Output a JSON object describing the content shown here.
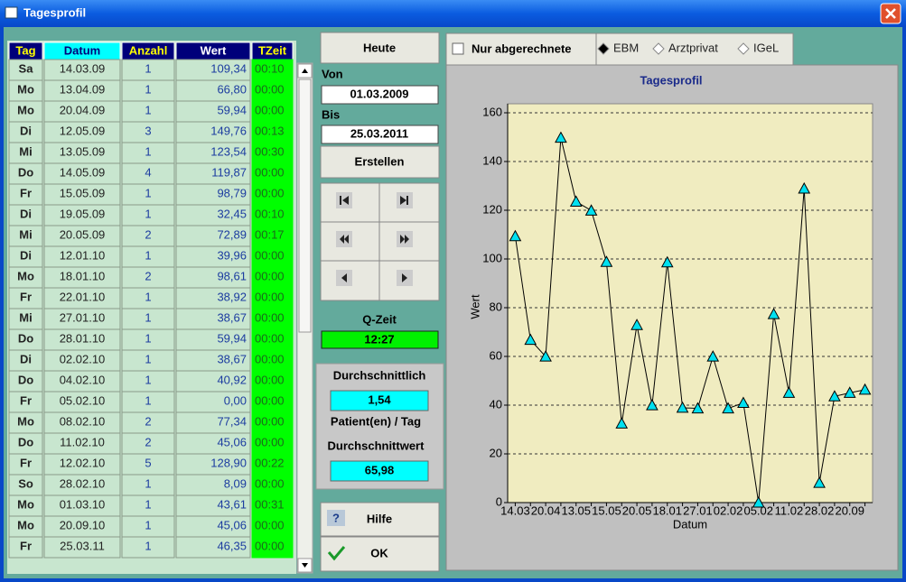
{
  "window": {
    "title": "Tagesprofil"
  },
  "table": {
    "headers": [
      "Tag",
      "Datum",
      "Anzahl",
      "Wert",
      "TZeit"
    ],
    "rows": [
      [
        "Sa",
        "14.03.09",
        "1",
        "109,34",
        "00:10"
      ],
      [
        "Mo",
        "13.04.09",
        "1",
        "66,80",
        "00:00"
      ],
      [
        "Mo",
        "20.04.09",
        "1",
        "59,94",
        "00:00"
      ],
      [
        "Di",
        "12.05.09",
        "3",
        "149,76",
        "00:13"
      ],
      [
        "Mi",
        "13.05.09",
        "1",
        "123,54",
        "00:30"
      ],
      [
        "Do",
        "14.05.09",
        "4",
        "119,87",
        "00:00"
      ],
      [
        "Fr",
        "15.05.09",
        "1",
        "98,79",
        "00:00"
      ],
      [
        "Di",
        "19.05.09",
        "1",
        "32,45",
        "00:10"
      ],
      [
        "Mi",
        "20.05.09",
        "2",
        "72,89",
        "00:17"
      ],
      [
        "Di",
        "12.01.10",
        "1",
        "39,96",
        "00:00"
      ],
      [
        "Mo",
        "18.01.10",
        "2",
        "98,61",
        "00:00"
      ],
      [
        "Fr",
        "22.01.10",
        "1",
        "38,92",
        "00:00"
      ],
      [
        "Mi",
        "27.01.10",
        "1",
        "38,67",
        "00:00"
      ],
      [
        "Do",
        "28.01.10",
        "1",
        "59,94",
        "00:00"
      ],
      [
        "Di",
        "02.02.10",
        "1",
        "38,67",
        "00:00"
      ],
      [
        "Do",
        "04.02.10",
        "1",
        "40,92",
        "00:00"
      ],
      [
        "Fr",
        "05.02.10",
        "1",
        "0,00",
        "00:00"
      ],
      [
        "Mo",
        "08.02.10",
        "2",
        "77,34",
        "00:00"
      ],
      [
        "Do",
        "11.02.10",
        "2",
        "45,06",
        "00:00"
      ],
      [
        "Fr",
        "12.02.10",
        "5",
        "128,90",
        "00:22"
      ],
      [
        "So",
        "28.02.10",
        "1",
        "8,09",
        "00:00"
      ],
      [
        "Mo",
        "01.03.10",
        "1",
        "43,61",
        "00:31"
      ],
      [
        "Mo",
        "20.09.10",
        "1",
        "45,06",
        "00:00"
      ],
      [
        "Fr",
        "25.03.11",
        "1",
        "46,35",
        "00:00"
      ]
    ]
  },
  "controls": {
    "today": "Heute",
    "from_label": "Von",
    "from": "01.03.2009",
    "to_label": "Bis",
    "to": "25.03.2011",
    "create": "Erstellen",
    "q_time_label": "Q-Zeit",
    "q_time": "12:27",
    "average_label": "Durchschnittlich",
    "average": "1,54",
    "per_day": "Patient(en) / Tag",
    "average_value_label": "Durchschnittwert",
    "average_value": "65,98",
    "help": "Hilfe",
    "ok": "OK"
  },
  "filters": {
    "checkbox": "Nur abgerechnete",
    "options": [
      "EBM",
      "Arztprivat",
      "IGeL"
    ]
  },
  "chart_data": {
    "type": "line",
    "title": "Tagesprofil",
    "x_label": "Datum",
    "y_label": "Wert",
    "categories": [
      "14.03",
      null,
      "20.04",
      null,
      "13.05",
      null,
      "15.05",
      null,
      "20.05",
      null,
      "18.01",
      null,
      "27.01",
      null,
      "02.02",
      null,
      "05.02",
      null,
      "11.02",
      null,
      "28.02",
      null,
      "20.09",
      null
    ],
    "series": [
      {
        "name": "Wert",
        "color": "#000000",
        "marker_color": "#00e0f0",
        "values": [
          109.34,
          66.8,
          59.94,
          149.76,
          123.54,
          119.87,
          98.79,
          32.45,
          72.89,
          39.96,
          98.61,
          38.92,
          38.67,
          59.94,
          38.67,
          40.92,
          0,
          77.34,
          45.06,
          128.9,
          8.09,
          43.61,
          45.06,
          46.35
        ]
      }
    ],
    "ylim": [
      0,
      160
    ],
    "yticks": [
      0,
      20,
      40,
      60,
      80,
      100,
      120,
      140,
      160
    ],
    "grid": true
  }
}
